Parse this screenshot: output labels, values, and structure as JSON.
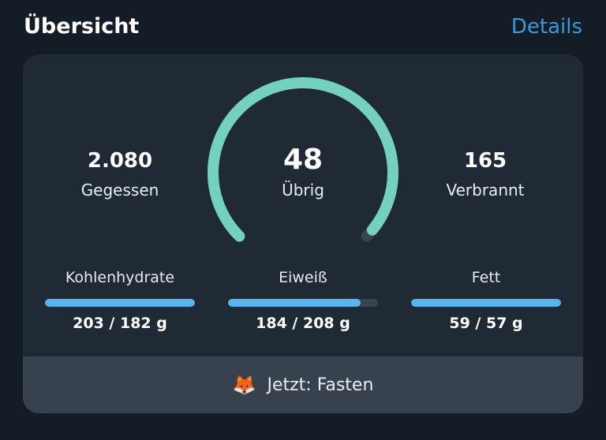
{
  "header": {
    "title": "Übersicht",
    "details_link": "Details"
  },
  "summary": {
    "eaten": {
      "value": "2.080",
      "label": "Gegessen"
    },
    "remaining": {
      "value": "48",
      "label": "Übrig"
    },
    "burned": {
      "value": "165",
      "label": "Verbrannt"
    },
    "gauge_fill_fraction": 0.98,
    "colors": {
      "gauge_fill": "#73d2bd",
      "gauge_track": "#3a4450"
    }
  },
  "macros": [
    {
      "label": "Kohlenhydrate",
      "value": "203 / 182 g",
      "fill_fraction": 1.0
    },
    {
      "label": "Eiweiß",
      "value": "184 / 208 g",
      "fill_fraction": 0.885
    },
    {
      "label": "Fett",
      "value": "59 / 57 g",
      "fill_fraction": 1.0
    }
  ],
  "status": {
    "icon": "fox-icon",
    "emoji": "🦊",
    "text": "Jetzt: Fasten"
  },
  "colors": {
    "accent": "#3b98d9",
    "bar": "#58b4ee"
  }
}
